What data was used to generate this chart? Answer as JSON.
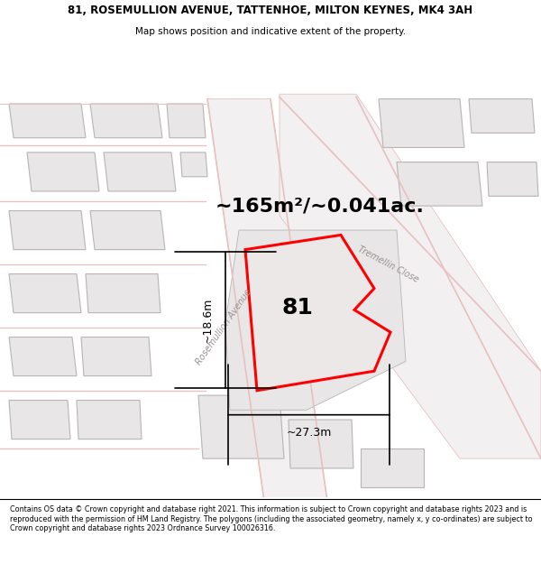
{
  "title_line1": "81, ROSEMULLION AVENUE, TATTENHOE, MILTON KEYNES, MK4 3AH",
  "title_line2": "Map shows position and indicative extent of the property.",
  "footer_text": "Contains OS data © Crown copyright and database right 2021. This information is subject to Crown copyright and database rights 2023 and is reproduced with the permission of HM Land Registry. The polygons (including the associated geometry, namely x, y co-ordinates) are subject to Crown copyright and database rights 2023 Ordnance Survey 100026316.",
  "area_label": "~165m²/~0.041ac.",
  "number_label": "81",
  "dim_height": "~18.6m",
  "dim_width": "~27.3m",
  "road_label1": "Rosemullion Avenue",
  "road_label2": "Tremellin Close",
  "map_bg": "#f7f5f5",
  "building_face": "#e8e6e6",
  "building_edge": "#b8b4b4",
  "road_pink": "#e8c0c0",
  "road_gray": "#d0cccc",
  "prop_fill": "#ece8e8",
  "red_color": "#ff0000",
  "title_fontsize": 8.5,
  "subtitle_fontsize": 7.5,
  "footer_fontsize": 5.8,
  "area_fontsize": 16,
  "number_fontsize": 18,
  "dim_fontsize": 9
}
